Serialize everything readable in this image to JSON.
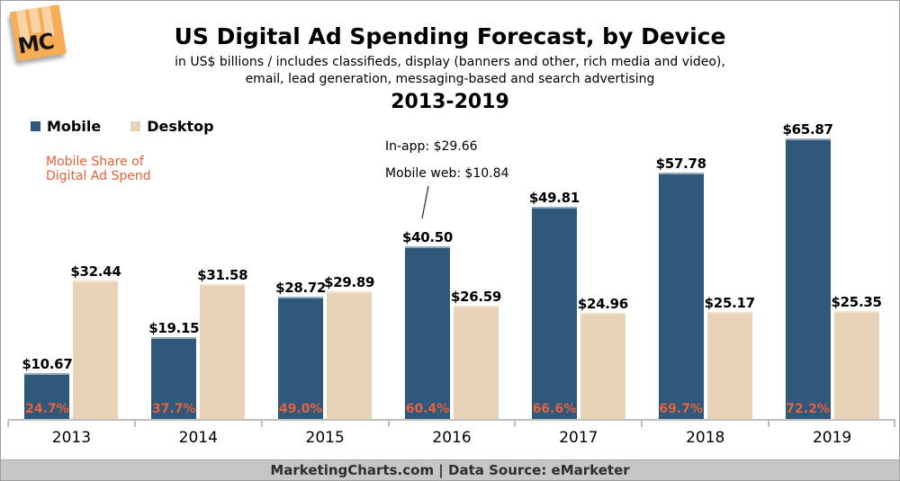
{
  "logo": {
    "text": "MC"
  },
  "header": {
    "title": "US Digital Ad Spending Forecast, by Device",
    "subtitle_line1": "in US$ billions / includes classifieds, display (banners and other, rich media and video),",
    "subtitle_line2": "email, lead generation, messaging-based and search advertising",
    "years_range": "2013-2019"
  },
  "legend": {
    "items": [
      {
        "label": "Mobile",
        "color": "#2f587a"
      },
      {
        "label": "Desktop",
        "color": "#e9d3b8"
      }
    ]
  },
  "notes": {
    "mobile_share_line1": "Mobile Share of",
    "mobile_share_line2": "Digital Ad Spend",
    "color": "#e8603c"
  },
  "annotation": {
    "line1": "In-app: $29.66",
    "line2": "Mobile web: $10.84",
    "points_to": "2016 Mobile bar"
  },
  "chart_data": {
    "type": "bar",
    "title": "US Digital Ad Spending Forecast, by Device",
    "xlabel": "",
    "ylabel": "US$ billions",
    "ylim": [
      0,
      70
    ],
    "grid": false,
    "legend_position": "top-left",
    "categories": [
      "2013",
      "2014",
      "2015",
      "2016",
      "2017",
      "2018",
      "2019"
    ],
    "series": [
      {
        "name": "Mobile",
        "color": "#2f587a",
        "values": [
          10.67,
          19.15,
          28.72,
          40.5,
          49.81,
          57.78,
          65.87
        ],
        "labels": [
          "$10.67",
          "$19.15",
          "$28.72",
          "$40.50",
          "$49.81",
          "$57.78",
          "$65.87"
        ]
      },
      {
        "name": "Desktop",
        "color": "#e9d3b8",
        "values": [
          32.44,
          31.58,
          29.89,
          26.59,
          24.96,
          25.17,
          25.35
        ],
        "labels": [
          "$32.44",
          "$31.58",
          "$29.89",
          "$26.59",
          "$24.96",
          "$25.17",
          "$25.35"
        ]
      }
    ],
    "mobile_share_of_digital_ad_spend": [
      "24.7%",
      "37.7%",
      "49.0%",
      "60.4%",
      "66.6%",
      "69.7%",
      "72.2%"
    ],
    "annotation_2016_breakdown": {
      "in_app": 29.66,
      "mobile_web": 10.84
    }
  },
  "colors": {
    "accent_orange": "#e8603c",
    "axis_gray": "#bfbfbf",
    "footer_bg": "#c6c6c6",
    "page_border": "#9f9f9f",
    "logo_orange": "#f6ad55"
  },
  "footer": {
    "text": "MarketingCharts.com | Data Source: eMarketer"
  }
}
